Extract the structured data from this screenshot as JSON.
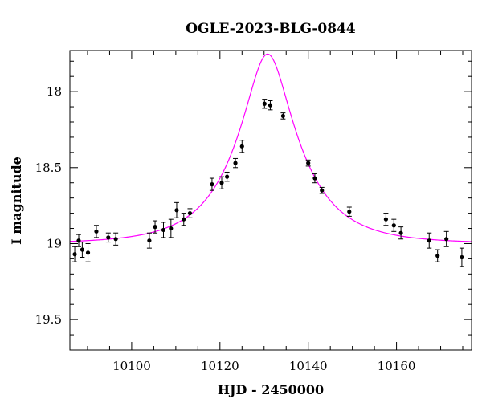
{
  "chart_data": {
    "type": "scatter",
    "title": "OGLE-2023-BLG-0844",
    "xlabel": "HJD - 2450000",
    "ylabel": "I magnitude",
    "xlim": [
      10086,
      10177
    ],
    "ylim": [
      19.7,
      17.73
    ],
    "y_inverted": true,
    "grid": false,
    "x_ticks": [
      10100,
      10120,
      10140,
      10160
    ],
    "x_tick_labels": [
      "10100",
      "10120",
      "10140",
      "10160"
    ],
    "y_ticks": [
      18,
      18.5,
      19,
      19.5
    ],
    "y_tick_labels": [
      "18",
      "18.5",
      "19",
      "19.5"
    ],
    "colors": {
      "data": "#000000",
      "model": "#ff00ff",
      "axes": "#000000"
    },
    "series": [
      {
        "kind": "points-with-errorbars",
        "points": [
          {
            "x": 10087.1,
            "y": 19.07,
            "err": 0.05
          },
          {
            "x": 10088.0,
            "y": 18.98,
            "err": 0.04
          },
          {
            "x": 10088.8,
            "y": 19.04,
            "err": 0.05
          },
          {
            "x": 10090.1,
            "y": 19.06,
            "err": 0.06
          },
          {
            "x": 10092.0,
            "y": 18.92,
            "err": 0.04
          },
          {
            "x": 10094.7,
            "y": 18.96,
            "err": 0.03
          },
          {
            "x": 10096.4,
            "y": 18.97,
            "err": 0.04
          },
          {
            "x": 10104.0,
            "y": 18.98,
            "err": 0.05
          },
          {
            "x": 10105.3,
            "y": 18.89,
            "err": 0.04
          },
          {
            "x": 10107.2,
            "y": 18.91,
            "err": 0.05
          },
          {
            "x": 10108.9,
            "y": 18.9,
            "err": 0.06
          },
          {
            "x": 10110.2,
            "y": 18.78,
            "err": 0.05
          },
          {
            "x": 10111.8,
            "y": 18.84,
            "err": 0.04
          },
          {
            "x": 10113.2,
            "y": 18.8,
            "err": 0.03
          },
          {
            "x": 10118.2,
            "y": 18.61,
            "err": 0.04
          },
          {
            "x": 10120.4,
            "y": 18.6,
            "err": 0.04
          },
          {
            "x": 10121.6,
            "y": 18.56,
            "err": 0.03
          },
          {
            "x": 10123.5,
            "y": 18.47,
            "err": 0.03
          },
          {
            "x": 10125.0,
            "y": 18.36,
            "err": 0.04
          },
          {
            "x": 10130.1,
            "y": 18.08,
            "err": 0.03
          },
          {
            "x": 10131.4,
            "y": 18.09,
            "err": 0.03
          },
          {
            "x": 10134.3,
            "y": 18.16,
            "err": 0.02
          },
          {
            "x": 10140.0,
            "y": 18.47,
            "err": 0.02
          },
          {
            "x": 10141.5,
            "y": 18.57,
            "err": 0.03
          },
          {
            "x": 10143.1,
            "y": 18.65,
            "err": 0.02
          },
          {
            "x": 10149.3,
            "y": 18.79,
            "err": 0.03
          },
          {
            "x": 10157.6,
            "y": 18.84,
            "err": 0.04
          },
          {
            "x": 10159.4,
            "y": 18.88,
            "err": 0.04
          },
          {
            "x": 10161.0,
            "y": 18.93,
            "err": 0.04
          },
          {
            "x": 10167.4,
            "y": 18.98,
            "err": 0.05
          },
          {
            "x": 10169.3,
            "y": 19.08,
            "err": 0.04
          },
          {
            "x": 10171.3,
            "y": 18.97,
            "err": 0.05
          },
          {
            "x": 10174.8,
            "y": 19.09,
            "err": 0.06
          }
        ]
      },
      {
        "kind": "model-curve",
        "model": "point-lens",
        "t0": 10130.8,
        "u0": 0.33,
        "tE": 14,
        "baseline": 19.0,
        "x_range": [
          10086,
          10177
        ]
      }
    ]
  }
}
